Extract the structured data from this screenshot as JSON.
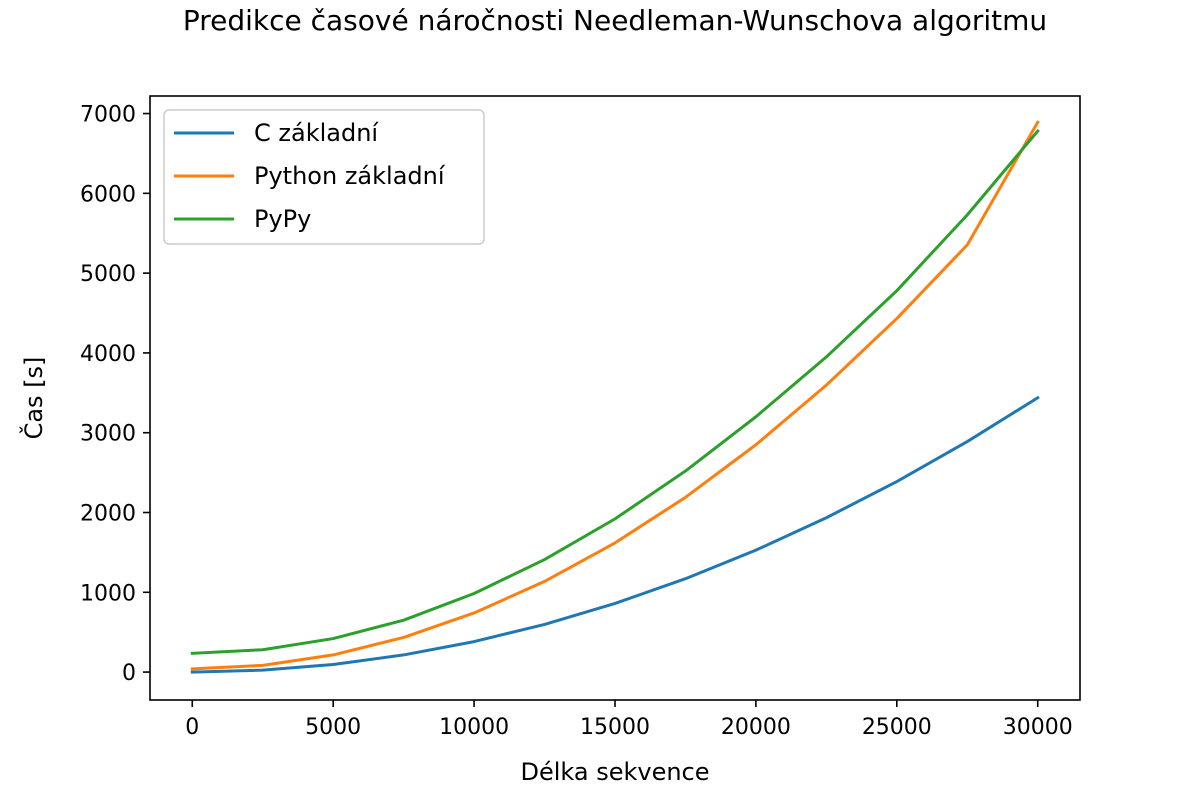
{
  "chart_data": {
    "type": "line",
    "title": "Predikce časové náročnosti Needleman-Wunschova algoritmu",
    "xlabel": "Délka sekvence",
    "ylabel": "Čas [s]",
    "xlim": [
      -1500,
      31500
    ],
    "ylim": [
      -350,
      7220
    ],
    "xticks": [
      0,
      5000,
      10000,
      15000,
      20000,
      25000,
      30000
    ],
    "yticks": [
      0,
      1000,
      2000,
      3000,
      4000,
      5000,
      6000,
      7000
    ],
    "grid": false,
    "legend_position": "top-left",
    "series": [
      {
        "name": "C základní",
        "color": "#1f77b4",
        "x": [
          0,
          2500,
          5000,
          7500,
          10000,
          12500,
          15000,
          17500,
          20000,
          22500,
          25000,
          27500,
          30000
        ],
        "y": [
          0,
          24,
          95,
          215,
          382,
          597,
          860,
          1170,
          1528,
          1934,
          2388,
          2889,
          3438
        ]
      },
      {
        "name": "Python základní",
        "color": "#ff7f0e",
        "x": [
          0,
          2500,
          5000,
          7500,
          10000,
          12500,
          15000,
          17500,
          20000,
          22500,
          25000,
          27500,
          30000
        ],
        "y": [
          40,
          84,
          215,
          434,
          741,
          1136,
          1619,
          2190,
          2849,
          3596,
          4431,
          5354,
          6891
        ]
      },
      {
        "name": "PyPy",
        "color": "#2ca02c",
        "x": [
          0,
          2500,
          5000,
          7500,
          10000,
          12500,
          15000,
          17500,
          20000,
          22500,
          25000,
          27500,
          30000
        ],
        "y": [
          235,
          280,
          420,
          650,
          985,
          1410,
          1920,
          2520,
          3200,
          3950,
          4780,
          5730,
          6780
        ]
      }
    ]
  }
}
